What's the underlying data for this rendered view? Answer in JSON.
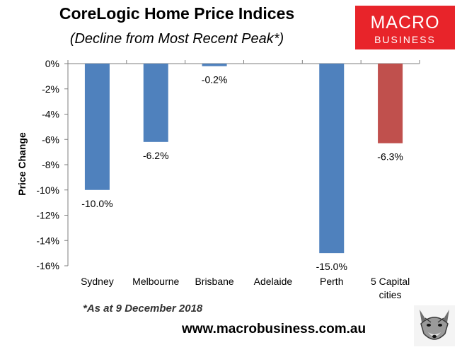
{
  "header": {
    "title": "CoreLogic Home Price Indices",
    "subtitle": "(Decline from Most Recent Peak*)"
  },
  "logo": {
    "line1": "MACRO",
    "line2": "BUSINESS",
    "background_color": "#e8242a"
  },
  "footer": {
    "footnote": "*As at 9 December 2018",
    "website": "www.macrobusiness.com.au"
  },
  "chart_data": {
    "type": "bar",
    "title": "CoreLogic Home Price Indices",
    "subtitle": "(Decline from Most Recent Peak*)",
    "ylabel": "Price Change",
    "xlabel": "",
    "categories": [
      "Sydney",
      "Melbourne",
      "Brisbane",
      "Adelaide",
      "Perth",
      "5 Capital cities"
    ],
    "category_lines": [
      [
        "Sydney"
      ],
      [
        "Melbourne"
      ],
      [
        "Brisbane"
      ],
      [
        "Adelaide"
      ],
      [
        "Perth"
      ],
      [
        "5 Capital",
        "cities"
      ]
    ],
    "values": [
      -10.0,
      -6.2,
      -0.2,
      null,
      -15.0,
      -6.3
    ],
    "data_labels": [
      "-10.0%",
      "-6.2%",
      "-0.2%",
      "",
      "-15.0%",
      "-6.3%"
    ],
    "bar_colors": [
      "#4f81bd",
      "#4f81bd",
      "#4f81bd",
      "#4f81bd",
      "#4f81bd",
      "#c0504d"
    ],
    "ylim": [
      -16,
      0
    ],
    "yticks": [
      0,
      -2,
      -4,
      -6,
      -8,
      -10,
      -12,
      -14,
      -16
    ],
    "ytick_labels": [
      "0%",
      "-2%",
      "-4%",
      "-6%",
      "-8%",
      "-10%",
      "-12%",
      "-14%",
      "-16%"
    ],
    "grid": false,
    "legend": "none"
  }
}
